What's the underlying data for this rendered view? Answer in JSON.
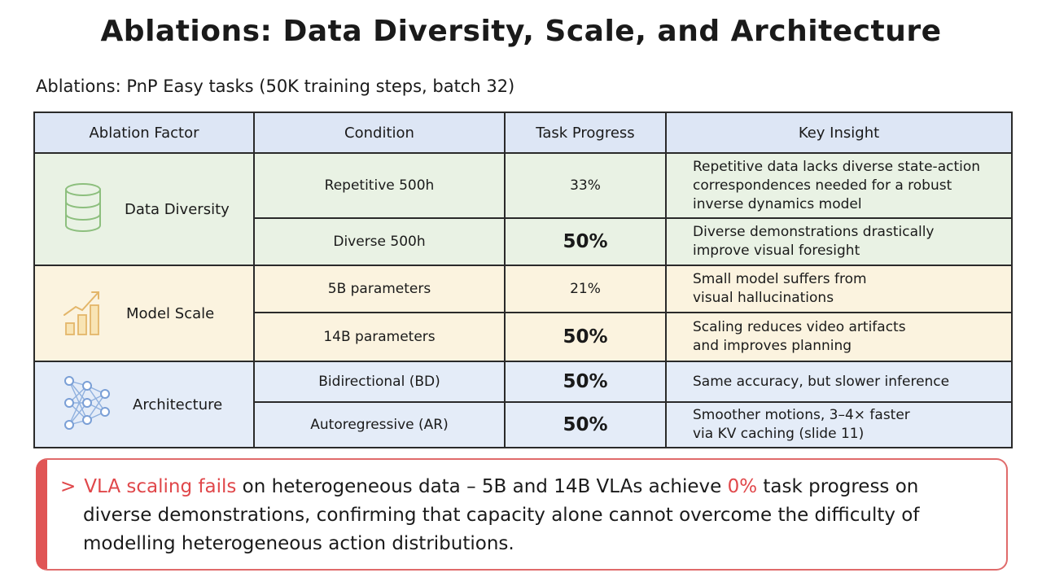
{
  "title": "Ablations: Data Diversity, Scale, and Architecture",
  "subtitle": "Ablations: PnP Easy tasks (50K training steps, batch 32)",
  "table": {
    "headers": [
      "Ablation Factor",
      "Condition",
      "Task Progress",
      "Key Insight"
    ],
    "groups": [
      {
        "factor": "Data Diversity",
        "icon": "database-icon",
        "color": "#e9f2e4",
        "rows": [
          {
            "condition": "Repetitive 500h",
            "progress": "33%",
            "insight": [
              "Repetitive data lacks diverse state-action",
              "correspondences needed for a robust",
              "inverse dynamics model"
            ]
          },
          {
            "condition": "Diverse 500h",
            "progress": "50%",
            "insight": [
              "Diverse demonstrations drastically",
              "improve visual foresight"
            ]
          }
        ]
      },
      {
        "factor": "Model Scale",
        "icon": "growth-chart-icon",
        "color": "#fbf3df",
        "rows": [
          {
            "condition": "5B parameters",
            "progress": "21%",
            "insight": [
              "Small model suffers from",
              "visual hallucinations"
            ]
          },
          {
            "condition": "14B parameters",
            "progress": "50%",
            "insight": [
              "Scaling reduces video artifacts",
              "and improves planning"
            ]
          }
        ]
      },
      {
        "factor": "Architecture",
        "icon": "neural-network-icon",
        "color": "#e4ecf8",
        "rows": [
          {
            "condition": "Bidirectional (BD)",
            "progress": "50%",
            "insight": [
              "Same accuracy, but slower inference"
            ]
          },
          {
            "condition": "Autoregressive (AR)",
            "progress": "50%",
            "insight": [
              "Smoother motions, 3–4× faster",
              "via KV caching (slide 11)"
            ]
          }
        ]
      }
    ]
  },
  "callout": {
    "marker": ">",
    "highlight1": "VLA scaling fails",
    "text1": " on heterogeneous data – 5B and 14B VLAs achieve ",
    "highlight2": "0%",
    "text2": " task progress on diverse demonstrations, confirming that capacity alone cannot overcome the difficulty of modelling heterogeneous action distributions.",
    "accent_color": "#e0474a"
  }
}
